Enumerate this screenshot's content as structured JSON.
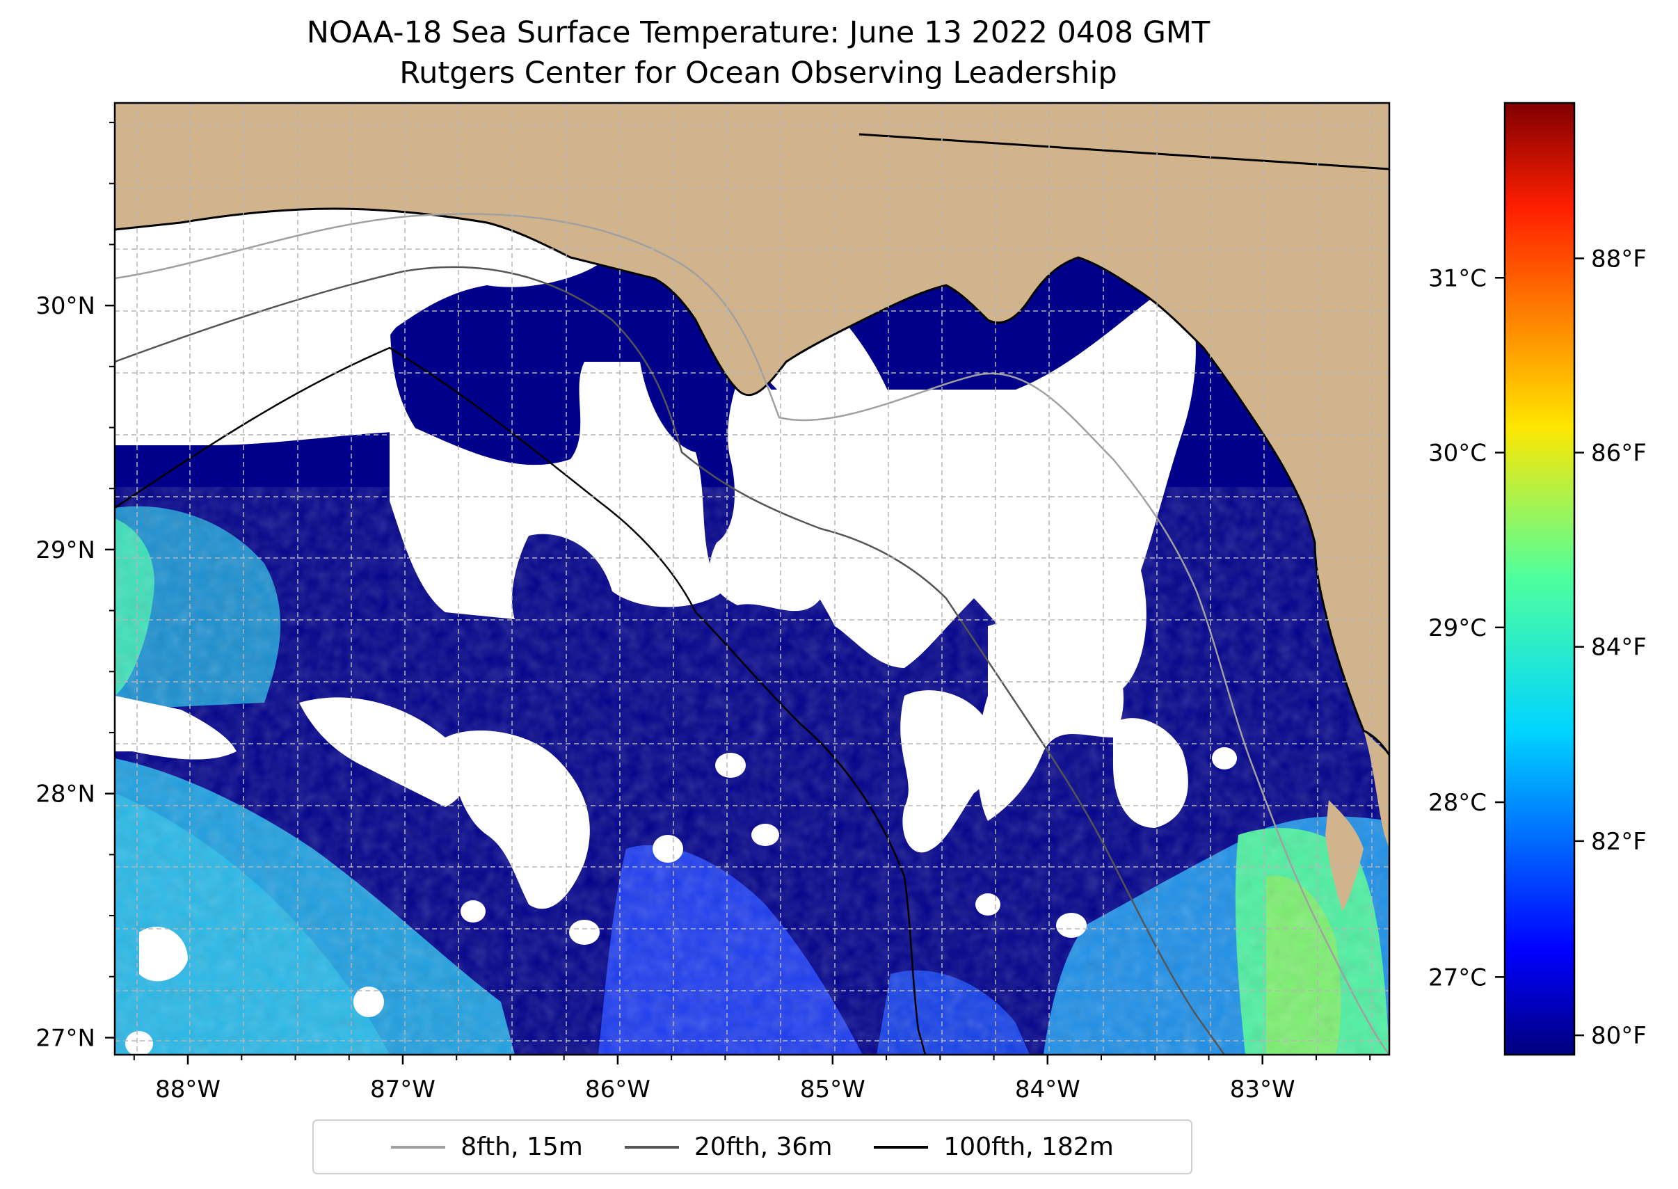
{
  "title": {
    "line1": "NOAA-18 Sea Surface Temperature: June 13 2022 0408 GMT",
    "line2": "Rutgers Center for Ocean Observing Leadership"
  },
  "map": {
    "lon_ticks": [
      "88°W",
      "87°W",
      "86°W",
      "85°W",
      "84°W",
      "83°W"
    ],
    "lat_ticks": [
      "30°N",
      "29°N",
      "28°N",
      "27°N"
    ],
    "lon_range": [
      -88.34,
      -82.41
    ],
    "lat_range": [
      26.93,
      30.83
    ],
    "colors": {
      "land": "#d2b48c",
      "cloud": "#ffffff",
      "cold_water": "#00008b",
      "lake": "#a6c3e6",
      "gridline": "#b5b5b5"
    }
  },
  "colorbar": {
    "celsius_ticks": [
      "31°C",
      "30°C",
      "29°C",
      "28°C",
      "27°C"
    ],
    "fahrenheit_ticks": [
      "88°F",
      "86°F",
      "84°F",
      "82°F",
      "80°F"
    ],
    "celsius_values": [
      31,
      30,
      29,
      28,
      27
    ],
    "fahrenheit_values": [
      88,
      86,
      84,
      82,
      80
    ],
    "range_f": [
      79.8,
      89.6
    ],
    "colormap": "jet"
  },
  "legend": {
    "items": [
      {
        "label": "8fth, 15m",
        "color": "#a0a0a0"
      },
      {
        "label": "20fth, 36m",
        "color": "#555555"
      },
      {
        "label": "100fth, 182m",
        "color": "#000000"
      }
    ]
  }
}
